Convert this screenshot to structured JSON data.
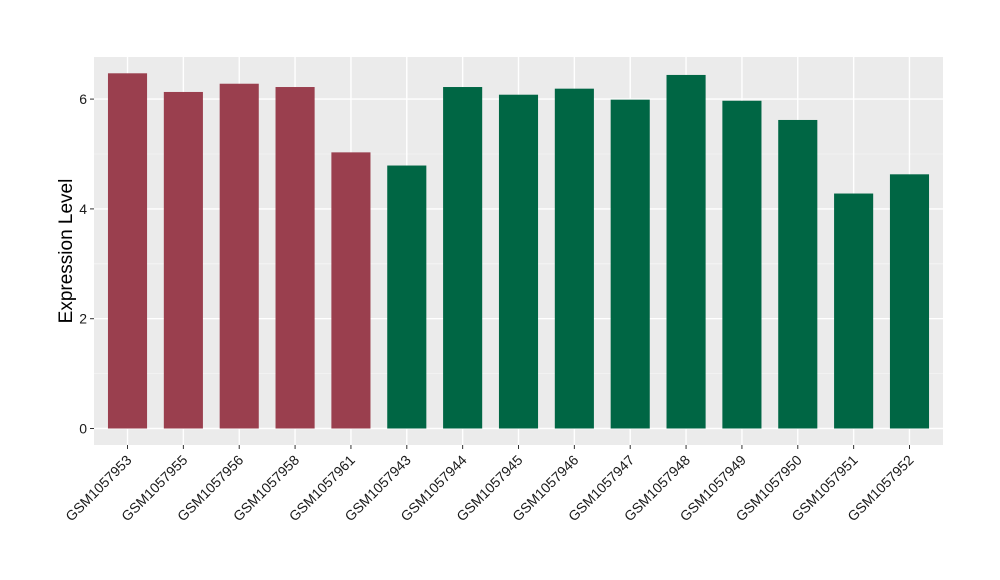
{
  "chart_data": {
    "type": "bar",
    "title": "",
    "xlabel": "",
    "ylabel": "Expression Level",
    "ylim": [
      0,
      6.75
    ],
    "yticks": [
      0,
      2,
      4,
      6
    ],
    "grid": true,
    "background": "#EBEBEB",
    "categories": [
      "GSM1057953",
      "GSM1057955",
      "GSM1057956",
      "GSM1057958",
      "GSM1057961",
      "GSM1057943",
      "GSM1057944",
      "GSM1057945",
      "GSM1057946",
      "GSM1057947",
      "GSM1057948",
      "GSM1057949",
      "GSM1057950",
      "GSM1057951",
      "GSM1057952"
    ],
    "values": [
      6.47,
      6.13,
      6.28,
      6.22,
      5.03,
      4.79,
      6.22,
      6.08,
      6.19,
      5.99,
      6.44,
      5.97,
      5.62,
      4.28,
      4.63
    ],
    "groups": [
      1,
      1,
      1,
      1,
      1,
      2,
      2,
      2,
      2,
      2,
      2,
      2,
      2,
      2,
      2
    ],
    "group_colors": {
      "1": "#9A3F4E",
      "2": "#006644"
    }
  }
}
